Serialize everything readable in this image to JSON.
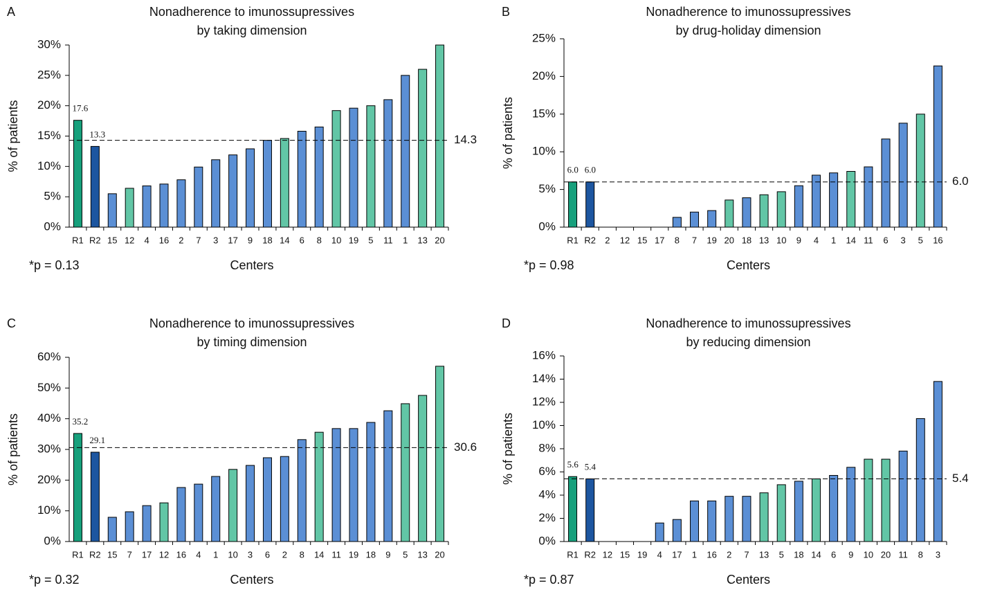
{
  "chart_data": [
    {
      "type": "bar",
      "label": "A",
      "title": "Nonadherence to imunossupressives",
      "subtitle": "by taking dimension",
      "ylabel": "% of patients",
      "xlabel": "Centers",
      "annotation": "*p = 0.13",
      "categories": [
        "R1",
        "R2",
        "15",
        "12",
        "4",
        "16",
        "2",
        "7",
        "3",
        "17",
        "9",
        "18",
        "14",
        "6",
        "8",
        "10",
        "19",
        "5",
        "11",
        "1",
        "13",
        "20"
      ],
      "values": [
        17.6,
        13.3,
        5.5,
        6.4,
        6.8,
        7.1,
        7.8,
        9.9,
        11.1,
        11.9,
        12.9,
        14.3,
        14.6,
        15.8,
        16.5,
        19.2,
        19.6,
        20.0,
        21.0,
        25.0,
        26.0,
        30.0
      ],
      "value_labels": [
        "17.6",
        "13.3",
        null,
        null,
        null,
        null,
        null,
        null,
        null,
        null,
        null,
        null,
        null,
        null,
        null,
        null,
        null,
        null,
        null,
        null,
        null,
        null
      ],
      "colors": [
        "#17a07c",
        "#1d56a0",
        "#5b8fd5",
        "#62c6a6",
        "#5b8fd5",
        "#5b8fd5",
        "#5b8fd5",
        "#5b8fd5",
        "#5b8fd5",
        "#5b8fd5",
        "#5b8fd5",
        "#5b8fd5",
        "#62c6a6",
        "#5b8fd5",
        "#5b8fd5",
        "#62c6a6",
        "#5b8fd5",
        "#62c6a6",
        "#5b8fd5",
        "#5b8fd5",
        "#62c6a6",
        "#62c6a6"
      ],
      "reference_line": {
        "value": 14.3,
        "label": "14.3"
      },
      "ylim": [
        0,
        30
      ],
      "yticks": [
        {
          "value": 0,
          "label": "0%"
        },
        {
          "value": 5,
          "label": "5%"
        },
        {
          "value": 10,
          "label": "10%"
        },
        {
          "value": 15,
          "label": "15%"
        },
        {
          "value": 20,
          "label": "20%"
        },
        {
          "value": 25,
          "label": "25%"
        },
        {
          "value": 30,
          "label": "30%"
        }
      ]
    },
    {
      "type": "bar",
      "label": "B",
      "title": "Nonadherence to imunossupressives",
      "subtitle": "by drug-holiday dimension",
      "ylabel": "% of patients",
      "xlabel": "Centers",
      "annotation": "*p = 0.98",
      "categories": [
        "R1",
        "R2",
        "2",
        "12",
        "15",
        "17",
        "8",
        "7",
        "19",
        "20",
        "18",
        "13",
        "10",
        "9",
        "4",
        "1",
        "14",
        "11",
        "6",
        "3",
        "5",
        "16"
      ],
      "values": [
        6.0,
        6.0,
        0,
        0,
        0,
        0,
        1.3,
        2.0,
        2.2,
        3.6,
        3.9,
        4.3,
        4.7,
        5.5,
        6.9,
        7.2,
        7.4,
        8.0,
        11.7,
        13.8,
        15.0,
        21.4
      ],
      "value_labels": [
        "6.0",
        "6.0",
        null,
        null,
        null,
        null,
        null,
        null,
        null,
        null,
        null,
        null,
        null,
        null,
        null,
        null,
        null,
        null,
        null,
        null,
        null,
        null
      ],
      "colors": [
        "#17a07c",
        "#1d56a0",
        "#5b8fd5",
        "#5b8fd5",
        "#5b8fd5",
        "#5b8fd5",
        "#5b8fd5",
        "#5b8fd5",
        "#5b8fd5",
        "#62c6a6",
        "#5b8fd5",
        "#62c6a6",
        "#62c6a6",
        "#5b8fd5",
        "#5b8fd5",
        "#5b8fd5",
        "#62c6a6",
        "#5b8fd5",
        "#5b8fd5",
        "#5b8fd5",
        "#62c6a6",
        "#5b8fd5"
      ],
      "reference_line": {
        "value": 6.0,
        "label": "6.0"
      },
      "ylim": [
        0,
        25
      ],
      "yticks": [
        {
          "value": 0,
          "label": "0%"
        },
        {
          "value": 5,
          "label": "5%"
        },
        {
          "value": 10,
          "label": "10%"
        },
        {
          "value": 15,
          "label": "15%"
        },
        {
          "value": 20,
          "label": "20%"
        },
        {
          "value": 25,
          "label": "25%"
        }
      ]
    },
    {
      "type": "bar",
      "label": "C",
      "title": "Nonadherence to imunossupressives",
      "subtitle": "by timing dimension",
      "ylabel": "% of patients",
      "xlabel": "Centers",
      "annotation": "*p = 0.32",
      "categories": [
        "R1",
        "R2",
        "15",
        "7",
        "17",
        "12",
        "16",
        "4",
        "1",
        "10",
        "3",
        "6",
        "2",
        "8",
        "14",
        "11",
        "19",
        "18",
        "9",
        "5",
        "13",
        "20"
      ],
      "values": [
        35.2,
        29.1,
        7.9,
        9.7,
        11.7,
        12.6,
        17.6,
        18.7,
        21.2,
        23.5,
        24.8,
        27.3,
        27.7,
        33.2,
        35.6,
        36.8,
        36.8,
        38.8,
        42.6,
        44.9,
        47.6,
        57.1
      ],
      "value_labels": [
        "35.2",
        "29.1",
        null,
        null,
        null,
        null,
        null,
        null,
        null,
        null,
        null,
        null,
        null,
        null,
        null,
        null,
        null,
        null,
        null,
        null,
        null,
        null
      ],
      "colors": [
        "#17a07c",
        "#1d56a0",
        "#5b8fd5",
        "#5b8fd5",
        "#5b8fd5",
        "#62c6a6",
        "#5b8fd5",
        "#5b8fd5",
        "#5b8fd5",
        "#62c6a6",
        "#5b8fd5",
        "#5b8fd5",
        "#5b8fd5",
        "#5b8fd5",
        "#62c6a6",
        "#5b8fd5",
        "#5b8fd5",
        "#5b8fd5",
        "#5b8fd5",
        "#62c6a6",
        "#62c6a6",
        "#62c6a6"
      ],
      "reference_line": {
        "value": 30.6,
        "label": "30.6"
      },
      "ylim": [
        0,
        60
      ],
      "yticks": [
        {
          "value": 0,
          "label": "0%"
        },
        {
          "value": 10,
          "label": "10%"
        },
        {
          "value": 20,
          "label": "20%"
        },
        {
          "value": 30,
          "label": "30%"
        },
        {
          "value": 40,
          "label": "40%"
        },
        {
          "value": 50,
          "label": "50%"
        },
        {
          "value": 60,
          "label": "60%"
        }
      ]
    },
    {
      "type": "bar",
      "label": "D",
      "title": "Nonadherence to imunossupressives",
      "subtitle": "by reducing dimension",
      "ylabel": "% of patients",
      "xlabel": "Centers",
      "annotation": "*p = 0.87",
      "categories": [
        "R1",
        "R2",
        "12",
        "15",
        "19",
        "4",
        "17",
        "1",
        "16",
        "2",
        "7",
        "13",
        "5",
        "18",
        "14",
        "6",
        "9",
        "10",
        "20",
        "11",
        "8",
        "3"
      ],
      "values": [
        5.6,
        5.4,
        0,
        0,
        0,
        1.6,
        1.9,
        3.5,
        3.5,
        3.9,
        3.9,
        4.2,
        4.9,
        5.2,
        5.4,
        5.7,
        6.4,
        7.1,
        7.1,
        7.8,
        10.6,
        13.8
      ],
      "value_labels": [
        "5.6",
        "5.4",
        null,
        null,
        null,
        null,
        null,
        null,
        null,
        null,
        null,
        null,
        null,
        null,
        null,
        null,
        null,
        null,
        null,
        null,
        null,
        null
      ],
      "colors": [
        "#17a07c",
        "#1d56a0",
        "#5b8fd5",
        "#5b8fd5",
        "#5b8fd5",
        "#5b8fd5",
        "#5b8fd5",
        "#5b8fd5",
        "#5b8fd5",
        "#5b8fd5",
        "#5b8fd5",
        "#62c6a6",
        "#62c6a6",
        "#5b8fd5",
        "#62c6a6",
        "#5b8fd5",
        "#5b8fd5",
        "#62c6a6",
        "#62c6a6",
        "#5b8fd5",
        "#5b8fd5",
        "#5b8fd5"
      ],
      "reference_line": {
        "value": 5.4,
        "label": "5.4"
      },
      "ylim": [
        0,
        16
      ],
      "yticks": [
        {
          "value": 0,
          "label": "0%"
        },
        {
          "value": 2,
          "label": "2%"
        },
        {
          "value": 4,
          "label": "4%"
        },
        {
          "value": 6,
          "label": "6%"
        },
        {
          "value": 8,
          "label": "8%"
        },
        {
          "value": 10,
          "label": "10%"
        },
        {
          "value": 12,
          "label": "12%"
        },
        {
          "value": 14,
          "label": "14%"
        },
        {
          "value": 16,
          "label": "16%"
        }
      ]
    }
  ]
}
